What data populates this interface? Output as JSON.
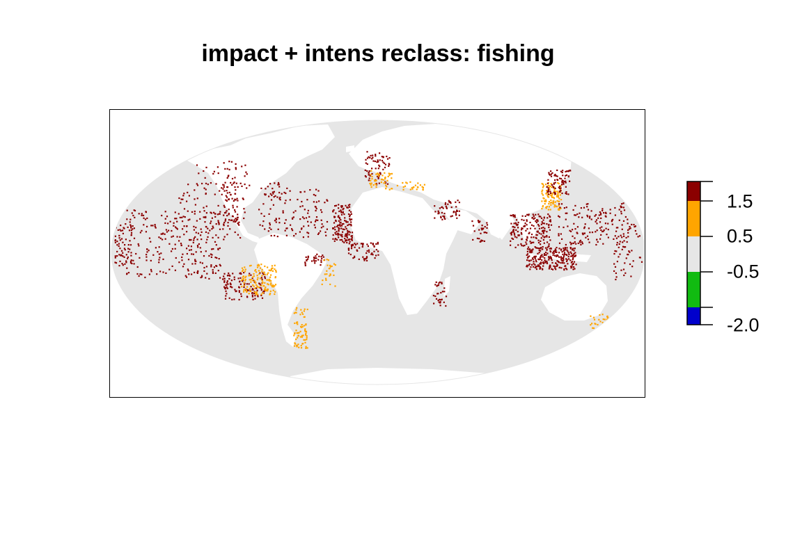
{
  "title": "impact + intens reclass: fishing",
  "legend": {
    "classes": [
      {
        "from": -2.0,
        "to": -1.5,
        "color": "#0000cc"
      },
      {
        "from": -1.5,
        "to": -0.5,
        "color": "#11bb11"
      },
      {
        "from": -0.5,
        "to": 0.5,
        "color": "#e6e6e6"
      },
      {
        "from": 0.5,
        "to": 1.5,
        "color": "#ffa500"
      },
      {
        "from": 1.5,
        "to": 2.0,
        "color": "#8b0000"
      }
    ],
    "tick_labels": [
      "1.5",
      "0.5",
      "-0.5",
      "-2.0"
    ]
  },
  "colors": {
    "ocean": "#e6e6e6",
    "land": "#ffffff",
    "high_impact": "#8b0000",
    "moderate_impact": "#ffa500"
  }
}
